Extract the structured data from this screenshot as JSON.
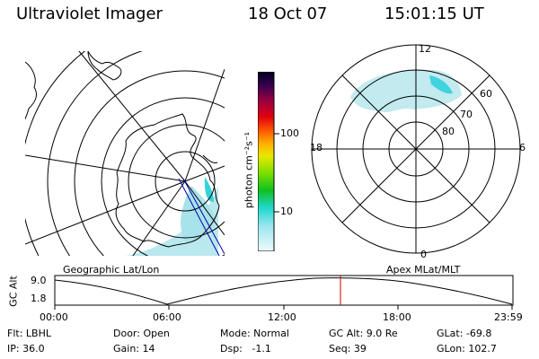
{
  "header": {
    "instrument": "Ultraviolet Imager",
    "date": "18 Oct 07",
    "time": "15:01:15 UT"
  },
  "colorbar": {
    "unit_label": "photon cm⁻²s⁻¹",
    "ticks": [
      "100",
      "10"
    ]
  },
  "geo_panel": {
    "caption": "Geographic Lat/Lon"
  },
  "apex_panel": {
    "caption": "Apex MLat/MLT",
    "mlt_labels": {
      "top": "12",
      "left": "18",
      "right": "6",
      "bottom": "0"
    },
    "lat_labels": [
      "60",
      "70",
      "80"
    ]
  },
  "altitude_plot": {
    "ylabel": "GC Alt",
    "y_ticks": [
      "9.0",
      "1.8"
    ],
    "x_ticks": [
      "00:00",
      "06:00",
      "12:00",
      "18:00",
      "23:59"
    ],
    "current_time": "15:01:15"
  },
  "info": {
    "flt": "Flt: LBHL",
    "ip": "IP: 36.0",
    "door": "Door: Open",
    "gain": "Gain: 14",
    "mode": "Mode: Normal",
    "dsp": "Dsp:   -1.1",
    "gc_alt": "GC Alt: 9.0 Re",
    "seq": "Seq: 39",
    "glat": "GLat: -69.8",
    "glon": "GLon: 102.7"
  },
  "colors": {
    "marker": "#cc0000",
    "orbit": "#0000aa",
    "aurora": "#b7e9ee",
    "aurora_bright": "#33d6de"
  }
}
